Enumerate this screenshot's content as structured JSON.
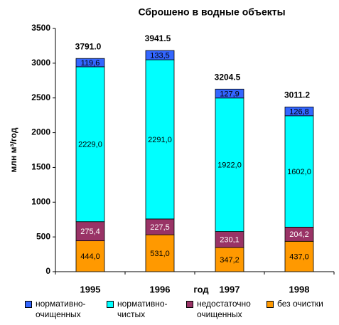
{
  "chart_data": {
    "type": "stacked_bar",
    "title": "Сброшено в водные объекты",
    "y_label": "млн м³/год",
    "x_label": "год",
    "categories": [
      "1995",
      "1996",
      "1997",
      "1998"
    ],
    "annotations": [
      "3791.0",
      "3941.5",
      "3204.5",
      "3011.2"
    ],
    "series": [
      {
        "name": "без очистки",
        "color": "#ff9900",
        "values": [
          444.0,
          531.0,
          347.2,
          437.0
        ],
        "value_labels": [
          "444,0",
          "531,0",
          "347,2",
          "437,0"
        ]
      },
      {
        "name": "недостаточно очищенных",
        "color": "#993366",
        "values": [
          275.4,
          227.5,
          230.1,
          204.2
        ],
        "value_labels": [
          "275,4",
          "227,5",
          "230,1",
          "204,2"
        ]
      },
      {
        "name": "нормативно-чистых",
        "color": "#00ffff",
        "values": [
          2229.0,
          2291.0,
          1922.0,
          1602.0
        ],
        "value_labels": [
          "2229,0",
          "2291,0",
          "1922,0",
          "1602,0"
        ]
      },
      {
        "name": "нормативно-очищенных",
        "color": "#3366ff",
        "values": [
          119.6,
          133.5,
          127.9,
          126.8
        ],
        "value_labels": [
          "119,6",
          "133,5",
          "127,9",
          "126,8"
        ]
      }
    ],
    "legend_order": [
      3,
      2,
      1,
      0
    ],
    "ylim": [
      0,
      3500
    ],
    "yticks": [
      0,
      500,
      1000,
      1500,
      2000,
      2500,
      3000,
      3500
    ],
    "grid": false
  }
}
